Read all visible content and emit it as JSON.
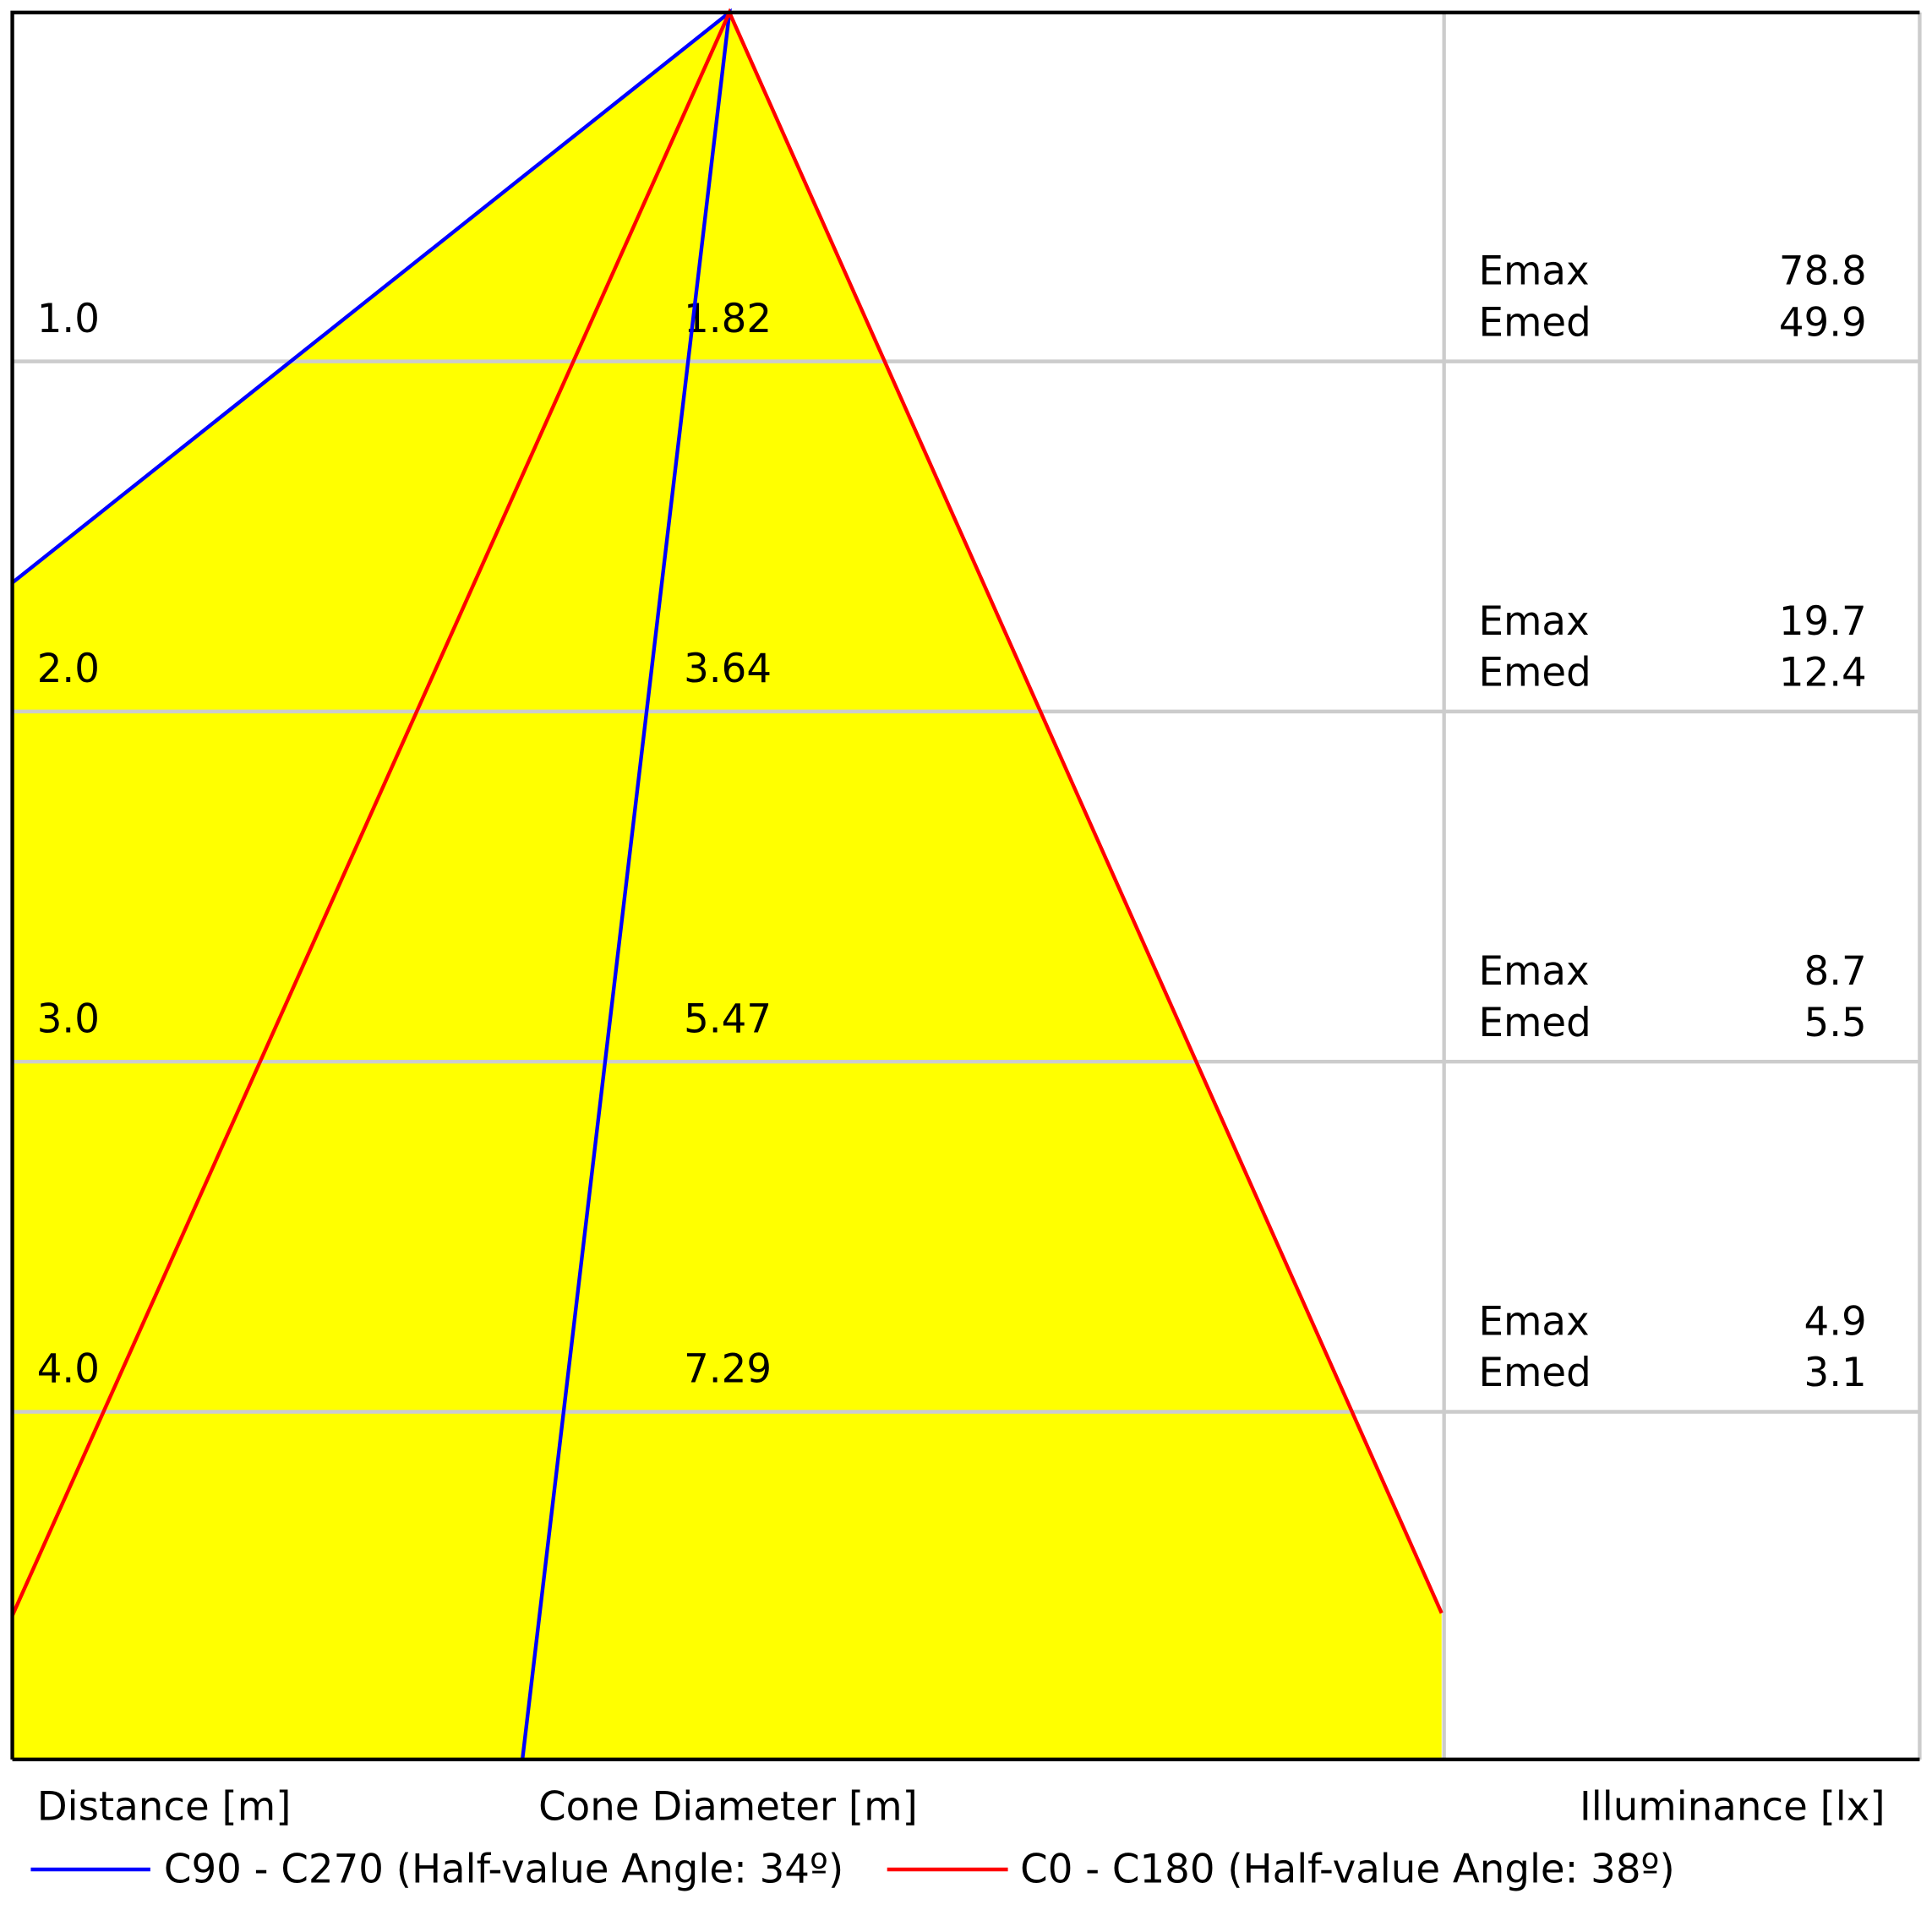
{
  "chart_data": {
    "type": "cone",
    "rows": [
      {
        "distance": {
          "value": 1,
          "label": "1.0"
        },
        "diameter": 1.82,
        "emax": 78.8,
        "emed": 49.9
      },
      {
        "distance": {
          "value": 2,
          "label": "2.0"
        },
        "diameter": 3.64,
        "emax": 19.7,
        "emed": 12.4
      },
      {
        "distance": {
          "value": 3,
          "label": "3.0"
        },
        "diameter": 5.47,
        "emax": 8.7,
        "emed": 5.5
      },
      {
        "distance": {
          "value": 4,
          "label": "4.0"
        },
        "diameter": 7.29,
        "emax": 4.9,
        "emed": 3.1
      }
    ],
    "emax_label": "Emax",
    "emed_label": "Emed",
    "ylim": [
      0,
      5
    ],
    "axis_labels": [
      "Distance [m]",
      "Cone Diameter [m]",
      "Illuminance [lx]"
    ],
    "series": [
      {
        "name": "C90 - C270 (Half-value Angle: 34º)",
        "color": "#0000ff"
      },
      {
        "name": "C0 - C180 (Half-value Angle: 38º)",
        "color": "#ff0000"
      }
    ],
    "fill": "#ffff00"
  }
}
